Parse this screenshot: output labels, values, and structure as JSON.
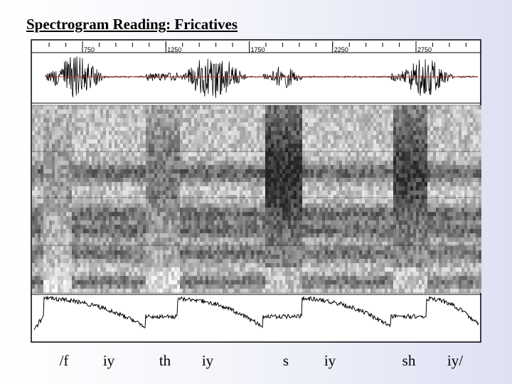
{
  "title": "Spectrogram Reading: Fricatives",
  "ruler": {
    "ticks": [
      750,
      1250,
      1750,
      2250,
      2750
    ]
  },
  "phones": [
    "/f",
    "iy",
    "th",
    "iy",
    "s",
    "iy",
    "sh",
    "iy/"
  ]
}
